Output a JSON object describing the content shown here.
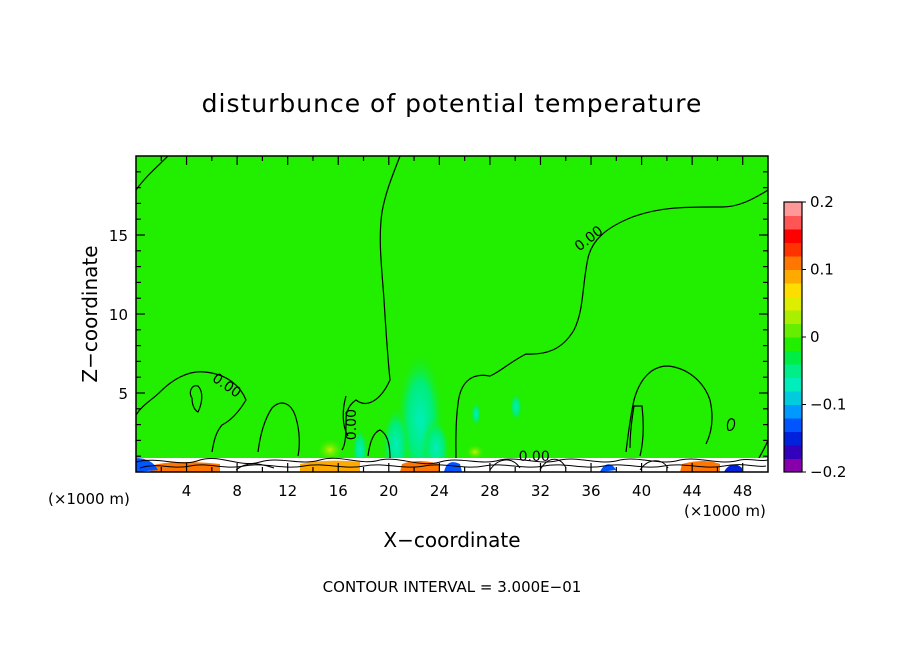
{
  "chart_data": {
    "type": "contour",
    "title": "disturbunce of potential temperature",
    "xlabel": "X−coordinate",
    "ylabel": "Z−coordinate",
    "x_unit_left": "(×1000 m)",
    "x_unit_right": "(×1000 m)",
    "footer": "CONTOUR INTERVAL = 3.000E−01",
    "xlim": [
      0,
      50
    ],
    "ylim": [
      0,
      20
    ],
    "x_ticks": [
      {
        "v": 4,
        "label": "4"
      },
      {
        "v": 8,
        "label": "8"
      },
      {
        "v": 12,
        "label": "12"
      },
      {
        "v": 16,
        "label": "16"
      },
      {
        "v": 20,
        "label": "20"
      },
      {
        "v": 24,
        "label": "24"
      },
      {
        "v": 28,
        "label": "28"
      },
      {
        "v": 32,
        "label": "32"
      },
      {
        "v": 36,
        "label": "36"
      },
      {
        "v": 40,
        "label": "40"
      },
      {
        "v": 44,
        "label": "44"
      },
      {
        "v": 48,
        "label": "48"
      }
    ],
    "y_ticks": [
      {
        "v": 5,
        "label": "5"
      },
      {
        "v": 10,
        "label": "10"
      },
      {
        "v": 15,
        "label": "15"
      }
    ],
    "field_background_color": "#22ee00",
    "colorbar": {
      "range": [
        -0.2,
        0.2
      ],
      "colors": [
        "#8800aa",
        "#3300bb",
        "#0022dd",
        "#0055ff",
        "#0099ff",
        "#00ccdd",
        "#00eebb",
        "#00ee88",
        "#00ee44",
        "#22ee00",
        "#66ee00",
        "#aaee00",
        "#ddee00",
        "#ffdd00",
        "#ffaa00",
        "#ff7700",
        "#ff3300",
        "#ff0000",
        "#ff5555",
        "#ff9999"
      ],
      "tick_labels": [
        {
          "v": 0.2,
          "label": "0.2"
        },
        {
          "v": 0.1,
          "label": "0.1"
        },
        {
          "v": 0,
          "label": "0"
        },
        {
          "v": -0.1,
          "label": "−0.1"
        },
        {
          "v": -0.2,
          "label": "−0.2"
        }
      ]
    },
    "contour_labels": [
      {
        "text": "0.00",
        "x": 35.8,
        "z": 14.8,
        "angle": -38
      },
      {
        "text": "0.00",
        "x": 7.2,
        "z": 5.5,
        "angle": 35
      },
      {
        "text": "0.00",
        "x": 17.0,
        "z": 3.0,
        "angle": -90
      },
      {
        "text": "0.00",
        "x": 31.5,
        "z": 1.0,
        "angle": 0
      }
    ]
  }
}
